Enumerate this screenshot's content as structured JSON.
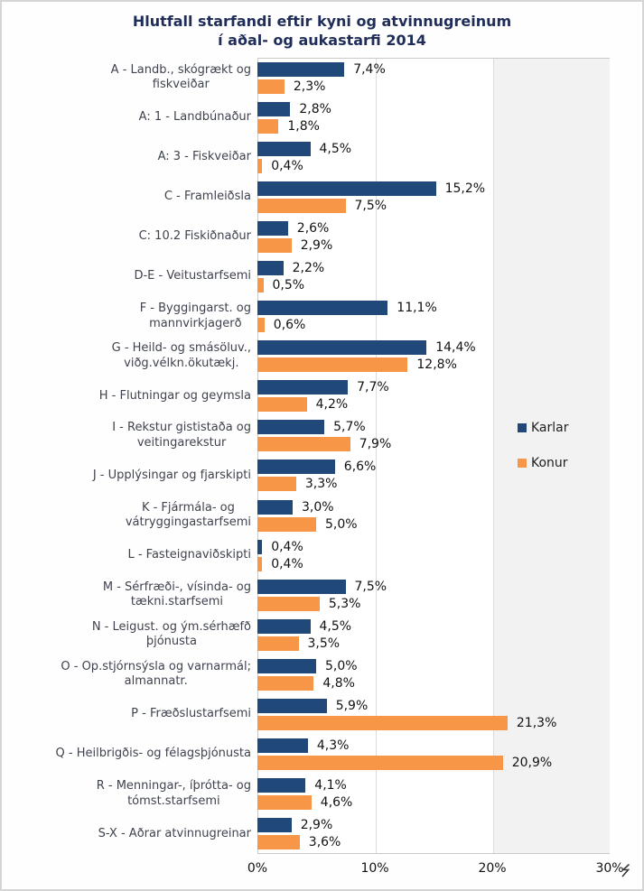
{
  "title": {
    "line1": "Hlutfall starfandi eftir kyni og atvinnugreinum",
    "line2": "í aðal- og aukastarfi 2014"
  },
  "legend": {
    "items": [
      {
        "label": "Karlar",
        "color": "#20497a"
      },
      {
        "label": "Konur",
        "color": "#f79646"
      }
    ]
  },
  "x_axis": {
    "tick_labels": [
      "0%",
      "10%",
      "20%",
      "30%"
    ],
    "tick_values": [
      0,
      10,
      20,
      30
    ],
    "max_percent": 30
  },
  "colors": {
    "karlar": "#20497a",
    "konur": "#f79646",
    "title": "#1f2d58",
    "shaded_band": "#f2f2f2",
    "gridline": "#dcdcdc",
    "plot_border": "#c9c9c9"
  },
  "chart_data": {
    "type": "bar",
    "orientation": "horizontal",
    "title": "Hlutfall starfandi eftir kyni og atvinnugreinum í aðal- og aukastarfi 2014",
    "categories": [
      "A - Landb., skógrækt og\nfiskveiðar",
      "A: 1 - Landbúnaður",
      "A: 3 - Fiskveiðar",
      "C - Framleiðsla",
      "C: 10.2 Fiskiðnaður",
      "D-E - Veitustarfsemi",
      "F - Byggingarst. og\nmannvirkjagerð",
      "G - Heild- og smásöluv.,\nviðg.vélkn.ökutækj.",
      "H - Flutningar og geymsla",
      "I - Rekstur gististaða og\nveitingarekstur",
      "J - Upplýsingar og fjarskipti",
      "K - Fjármála- og\nvátryggingastarfsemi",
      "L - Fasteignaviðskipti",
      "M - Sérfræði-, vísinda- og\ntækni.starfsemi",
      "N - Leigust. og ým.sérhæfð\nþjónusta",
      "O - Op.stjórnsýsla og varnarmál;\nalmannatr.",
      "P - Fræðslustarfsemi",
      "Q - Heilbrigðis- og félagsþjónusta",
      "R - Menningar-, íþrótta- og\ntómst.starfsemi",
      "S-X - Aðrar atvinnugreinar"
    ],
    "series": [
      {
        "name": "Karlar",
        "color": "#20497a",
        "values": [
          7.4,
          2.8,
          4.5,
          15.2,
          2.6,
          2.2,
          11.1,
          14.4,
          7.7,
          5.7,
          6.6,
          3.0,
          0.4,
          7.5,
          4.5,
          5.0,
          5.9,
          4.3,
          4.1,
          2.9
        ]
      },
      {
        "name": "Konur",
        "color": "#f79646",
        "values": [
          2.3,
          1.8,
          0.4,
          7.5,
          2.9,
          0.5,
          0.6,
          12.8,
          4.2,
          7.9,
          3.3,
          5.0,
          0.4,
          5.3,
          3.5,
          4.8,
          21.3,
          20.9,
          4.6,
          3.6
        ]
      }
    ],
    "xlim": [
      0,
      30
    ],
    "x_ticks": [
      0,
      10,
      20,
      30
    ],
    "value_label_format": "comma-decimal percent, e.g. 7,4%",
    "legend_position": "inside-right",
    "gridlines": "vertical at 10% and 20%",
    "shaded_band_percent": [
      20,
      30
    ]
  }
}
